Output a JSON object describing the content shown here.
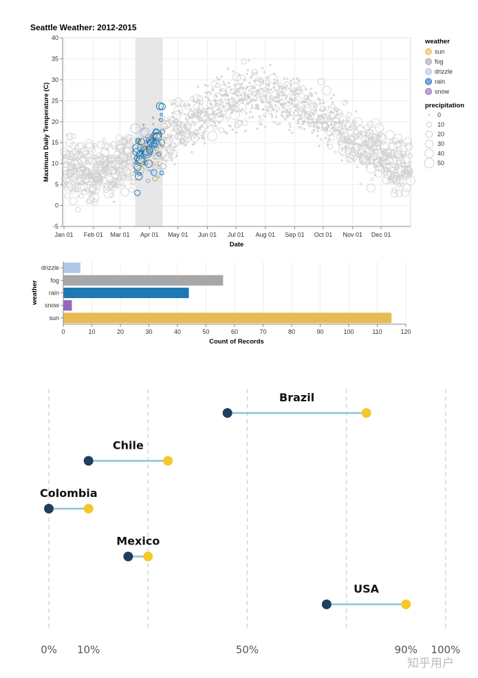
{
  "chart_data": [
    {
      "type": "scatter",
      "title": "Seattle Weather: 2012-2015",
      "xlabel": "Date",
      "ylabel": "Maximum Daily Temperature (C)",
      "ylim": [
        -5,
        40
      ],
      "yticks": [
        -5,
        0,
        5,
        10,
        15,
        20,
        25,
        30,
        35,
        40
      ],
      "xticks": [
        "Jan 01",
        "Feb 01",
        "Mar 01",
        "Apr 01",
        "May 01",
        "Jun 01",
        "Jul 01",
        "Aug 01",
        "Sep 01",
        "Oct 01",
        "Nov 01",
        "Dec 01"
      ],
      "xtick_day_of_year": [
        0,
        31,
        59,
        90,
        120,
        151,
        181,
        212,
        243,
        273,
        304,
        334
      ],
      "x_domain_days": [
        0,
        365
      ],
      "grid": true,
      "brush_selection_days": [
        75,
        104
      ],
      "legend_placement": "right",
      "color_legend": {
        "title": "weather",
        "entries": [
          {
            "label": "sun",
            "color": "#e7ba52"
          },
          {
            "label": "fog",
            "color": "#a7a7a7"
          },
          {
            "label": "drizzle",
            "color": "#aec7e8"
          },
          {
            "label": "rain",
            "color": "#1f77b4"
          },
          {
            "label": "snow",
            "color": "#9467bd"
          }
        ]
      },
      "size_legend": {
        "title": "precipitation",
        "entries": [
          0,
          10,
          20,
          30,
          40,
          50
        ]
      },
      "unselected_color": "#cfcfcf",
      "seasonal_model": {
        "description": "Points approximate daily max temperature over ~4 years folded onto one year",
        "points_per_day": 4,
        "mean_min_c": 8,
        "mean_max_c": 26,
        "peak_day": 205,
        "spread_c": 4.5
      }
    },
    {
      "type": "bar",
      "orientation": "horizontal",
      "xlabel": "Count of Records",
      "ylabel": "weather",
      "xlim": [
        0,
        120
      ],
      "xticks": [
        0,
        10,
        20,
        30,
        40,
        50,
        60,
        70,
        80,
        90,
        100,
        110,
        120
      ],
      "categories": [
        "drizzle",
        "fog",
        "rain",
        "snow",
        "sun"
      ],
      "values": [
        6,
        56,
        44,
        3,
        115
      ],
      "colors": [
        "#aec7e8",
        "#a7a7a7",
        "#1f77b4",
        "#9467bd",
        "#e7ba52"
      ],
      "grid": true
    },
    {
      "type": "dumbbell",
      "xlim": [
        0,
        100
      ],
      "gridlines_pct": [
        0,
        25,
        50,
        75,
        100
      ],
      "tick_labels": [
        "0%",
        "10%",
        "50%",
        "90%",
        "100%"
      ],
      "tick_values": [
        0,
        10,
        50,
        90,
        100
      ],
      "start_color": "#1f3f5f",
      "end_color": "#f5c82a",
      "line_color": "#8fc3d6",
      "series": [
        {
          "name": "Brazil",
          "start": 45,
          "end": 80
        },
        {
          "name": "Chile",
          "start": 10,
          "end": 30
        },
        {
          "name": "Colombia",
          "start": 0,
          "end": 10
        },
        {
          "name": "Mexico",
          "start": 20,
          "end": 25
        },
        {
          "name": "USA",
          "start": 70,
          "end": 90
        }
      ]
    }
  ],
  "watermark": "知乎用户"
}
